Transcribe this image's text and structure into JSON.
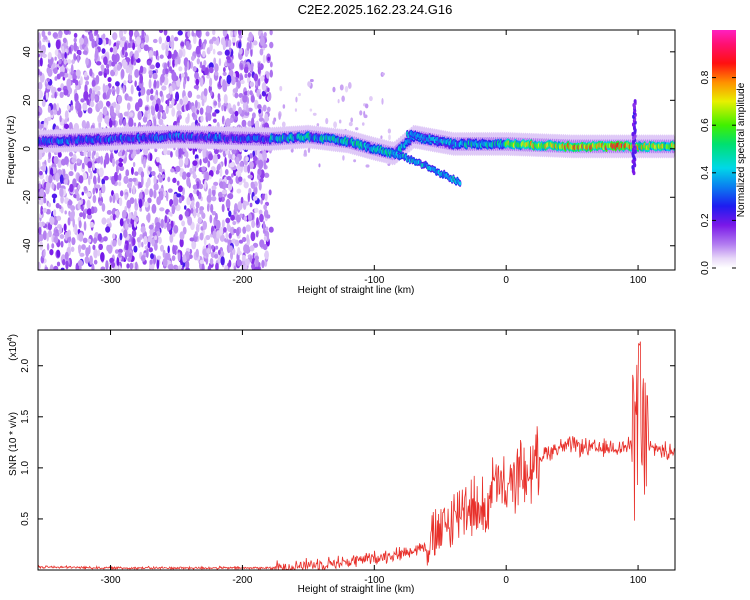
{
  "title": "C2E2.2025.162.23.24.G16",
  "chart_data": [
    {
      "type": "heatmap",
      "xlabel": "Height of straight line (km)",
      "ylabel": "Frequency (Hz)",
      "xlim": [
        -355,
        128
      ],
      "ylim": [
        -50,
        49
      ],
      "xticks": [
        -300,
        -200,
        -100,
        0,
        100
      ],
      "xtick_labels": [
        "-300",
        "-200",
        "-100",
        "0",
        "100"
      ],
      "yticks": [
        -40,
        -20,
        0,
        20,
        40
      ],
      "ytick_labels": [
        "-40",
        "-20",
        "0",
        "20",
        "40"
      ],
      "colorbar": {
        "label": "Normalized spectral amplitude",
        "range": [
          0,
          1
        ],
        "ticks": [
          0.0,
          0.2,
          0.4,
          0.6,
          0.8
        ],
        "tick_labels": [
          "0.0",
          "0.2",
          "0.4",
          "0.6",
          "0.8"
        ],
        "colormap": "rainbow (white → purple → blue → cyan → green → yellow → red → magenta)"
      },
      "features": {
        "noise_region_x": [
          -355,
          -178
        ],
        "main_band": [
          [
            -355,
            3
          ],
          [
            -250,
            5
          ],
          [
            -180,
            4
          ],
          [
            -150,
            5
          ],
          [
            -120,
            3
          ],
          [
            -100,
            0
          ],
          [
            -85,
            -2
          ],
          [
            -70,
            5
          ],
          [
            -40,
            2
          ],
          [
            0,
            2
          ],
          [
            50,
            1
          ],
          [
            100,
            1
          ],
          [
            128,
            1
          ]
        ],
        "secondary_branch": [
          [
            -85,
            -2
          ],
          [
            -65,
            -6
          ],
          [
            -50,
            -10
          ],
          [
            -35,
            -14
          ]
        ],
        "upper_branch": [
          [
            -75,
            6
          ],
          [
            -55,
            4
          ],
          [
            -40,
            2
          ]
        ],
        "spike_x": 97,
        "spike_freq_range": [
          -10,
          20
        ]
      }
    },
    {
      "type": "line",
      "xlabel": "Height of straight line (km)",
      "ylabel": "SNR (10 * v/v)",
      "y_multiplier_label": "(x10",
      "y_multiplier_exp": "4",
      "xlim": [
        -355,
        128
      ],
      "ylim": [
        0,
        2.35
      ],
      "xticks": [
        -300,
        -200,
        -100,
        0,
        100
      ],
      "xtick_labels": [
        "-300",
        "-200",
        "-100",
        "0",
        "100"
      ],
      "yticks": [
        0.5,
        1.0,
        1.5,
        2.0
      ],
      "ytick_labels": [
        "0.5",
        "1.0",
        "1.5",
        "2.0"
      ],
      "series": [
        {
          "color": "#e8302a",
          "x": [
            -355,
            -300,
            -250,
            -200,
            -175,
            -160,
            -140,
            -120,
            -100,
            -90,
            -80,
            -70,
            -60,
            -50,
            -40,
            -35,
            -30,
            -25,
            -20,
            -15,
            -10,
            -5,
            0,
            5,
            10,
            15,
            20,
            25,
            30,
            40,
            50,
            60,
            70,
            80,
            90,
            95,
            100,
            103,
            105,
            110,
            115,
            120,
            128
          ],
          "y": [
            0.03,
            0.02,
            0.02,
            0.02,
            0.02,
            0.04,
            0.06,
            0.08,
            0.12,
            0.14,
            0.16,
            0.2,
            0.24,
            0.35,
            0.5,
            0.6,
            0.65,
            0.62,
            0.55,
            0.6,
            0.85,
            0.8,
            0.75,
            0.85,
            1.0,
            0.9,
            1.0,
            1.1,
            1.15,
            1.2,
            1.22,
            1.2,
            1.18,
            1.2,
            1.2,
            1.22,
            1.3,
            1.25,
            1.25,
            1.18,
            1.2,
            1.15,
            1.18
          ]
        }
      ]
    }
  ]
}
